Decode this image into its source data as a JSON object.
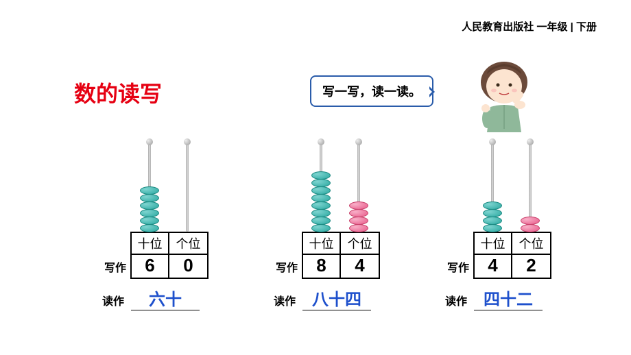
{
  "header": "人民教育出版社 一年级 | 下册",
  "title": "数的读写",
  "speech": "写一写，读一读。",
  "labels": {
    "write": "写作",
    "read": "读作",
    "tens": "十位",
    "ones": "个位"
  },
  "colors": {
    "title": "#e60012",
    "read_value": "#1e50cc",
    "bubble_border": "#2a5caa",
    "teal_bead": "#2aa8a0",
    "pink_bead": "#e85a8a"
  },
  "groups": [
    {
      "tens_beads": 6,
      "tens_color": "teal",
      "ones_beads": 0,
      "ones_color": "pink",
      "write_tens": "6",
      "write_ones": "0",
      "read": "六十"
    },
    {
      "tens_beads": 8,
      "tens_color": "teal",
      "ones_beads": 4,
      "ones_color": "pink",
      "write_tens": "8",
      "write_ones": "4",
      "read": "八十四"
    },
    {
      "tens_beads": 4,
      "tens_color": "teal",
      "ones_beads": 2,
      "ones_color": "pink",
      "write_tens": "4",
      "write_ones": "2",
      "read": "四十二"
    }
  ]
}
